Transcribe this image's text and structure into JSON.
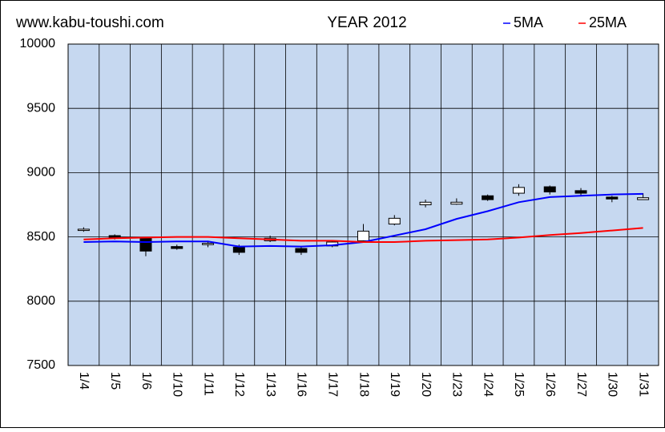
{
  "chart_data": {
    "type": "candlestick",
    "site": "www.kabu-toushi.com",
    "title": "YEAR 2012",
    "categories": [
      "1/4",
      "1/5",
      "1/6",
      "1/10",
      "1/11",
      "1/12",
      "1/13",
      "1/16",
      "1/17",
      "1/18",
      "1/19",
      "1/20",
      "1/23",
      "1/24",
      "1/25",
      "1/26",
      "1/27",
      "1/30",
      "1/31"
    ],
    "open": [
      8550,
      8510,
      8490,
      8425,
      8440,
      8420,
      8470,
      8410,
      8430,
      8470,
      8600,
      8750,
      8755,
      8820,
      8840,
      8890,
      8860,
      8810,
      8790
    ],
    "high": [
      8575,
      8520,
      8500,
      8440,
      8470,
      8440,
      8510,
      8420,
      8470,
      8600,
      8670,
      8790,
      8800,
      8830,
      8910,
      8900,
      8880,
      8820,
      8840
    ],
    "low": [
      8540,
      8480,
      8350,
      8400,
      8420,
      8360,
      8460,
      8360,
      8420,
      8460,
      8590,
      8730,
      8750,
      8780,
      8820,
      8830,
      8820,
      8770,
      8790
    ],
    "close": [
      8560,
      8490,
      8390,
      8410,
      8450,
      8380,
      8490,
      8380,
      8460,
      8545,
      8645,
      8770,
      8770,
      8790,
      8885,
      8850,
      8840,
      8795,
      8805
    ],
    "series": [
      {
        "name": "5MA",
        "color": "#0000ff",
        "values": [
          8460,
          8465,
          8460,
          8465,
          8465,
          8425,
          8430,
          8425,
          8435,
          8460,
          8510,
          8560,
          8640,
          8700,
          8770,
          8810,
          8820,
          8830,
          8835
        ]
      },
      {
        "name": "25MA",
        "color": "#ff0000",
        "values": [
          8480,
          8490,
          8495,
          8500,
          8500,
          8490,
          8480,
          8470,
          8470,
          8460,
          8460,
          8470,
          8475,
          8480,
          8495,
          8515,
          8530,
          8550,
          8570
        ]
      }
    ],
    "ylim": [
      7500,
      10000
    ],
    "yticks": [
      7500,
      8000,
      8500,
      9000,
      9500,
      10000
    ],
    "grid": true
  }
}
